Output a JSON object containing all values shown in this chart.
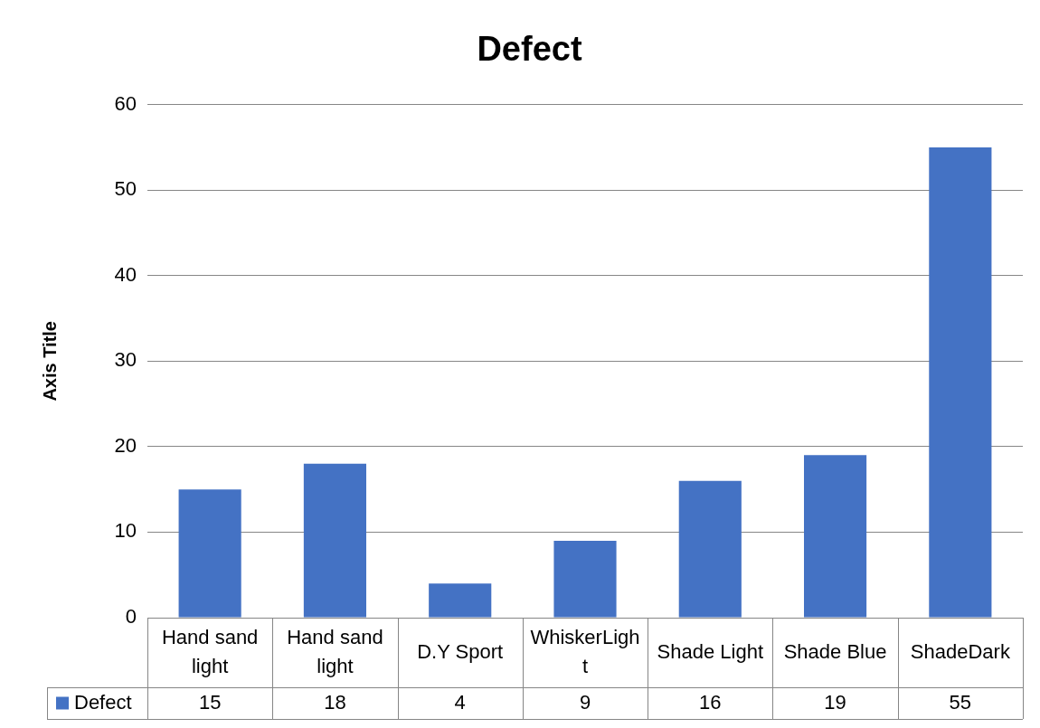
{
  "chart_data": {
    "type": "bar",
    "title": "Defect",
    "ylabel": "Axis Title",
    "categories": [
      "Hand sand light",
      "Hand sand light",
      "D.Y Sport",
      "WhiskerLight",
      "Shade Light",
      "Shade Blue",
      "ShadeDark"
    ],
    "series": [
      {
        "name": "Defect",
        "color": "#4472c4",
        "values": [
          15,
          18,
          4,
          9,
          16,
          19,
          55
        ]
      }
    ],
    "ylim": [
      0,
      60
    ],
    "yticks": [
      0,
      10,
      20,
      30,
      40,
      50,
      60
    ],
    "grid": "y",
    "legend": "bottom",
    "data_labels": true
  }
}
